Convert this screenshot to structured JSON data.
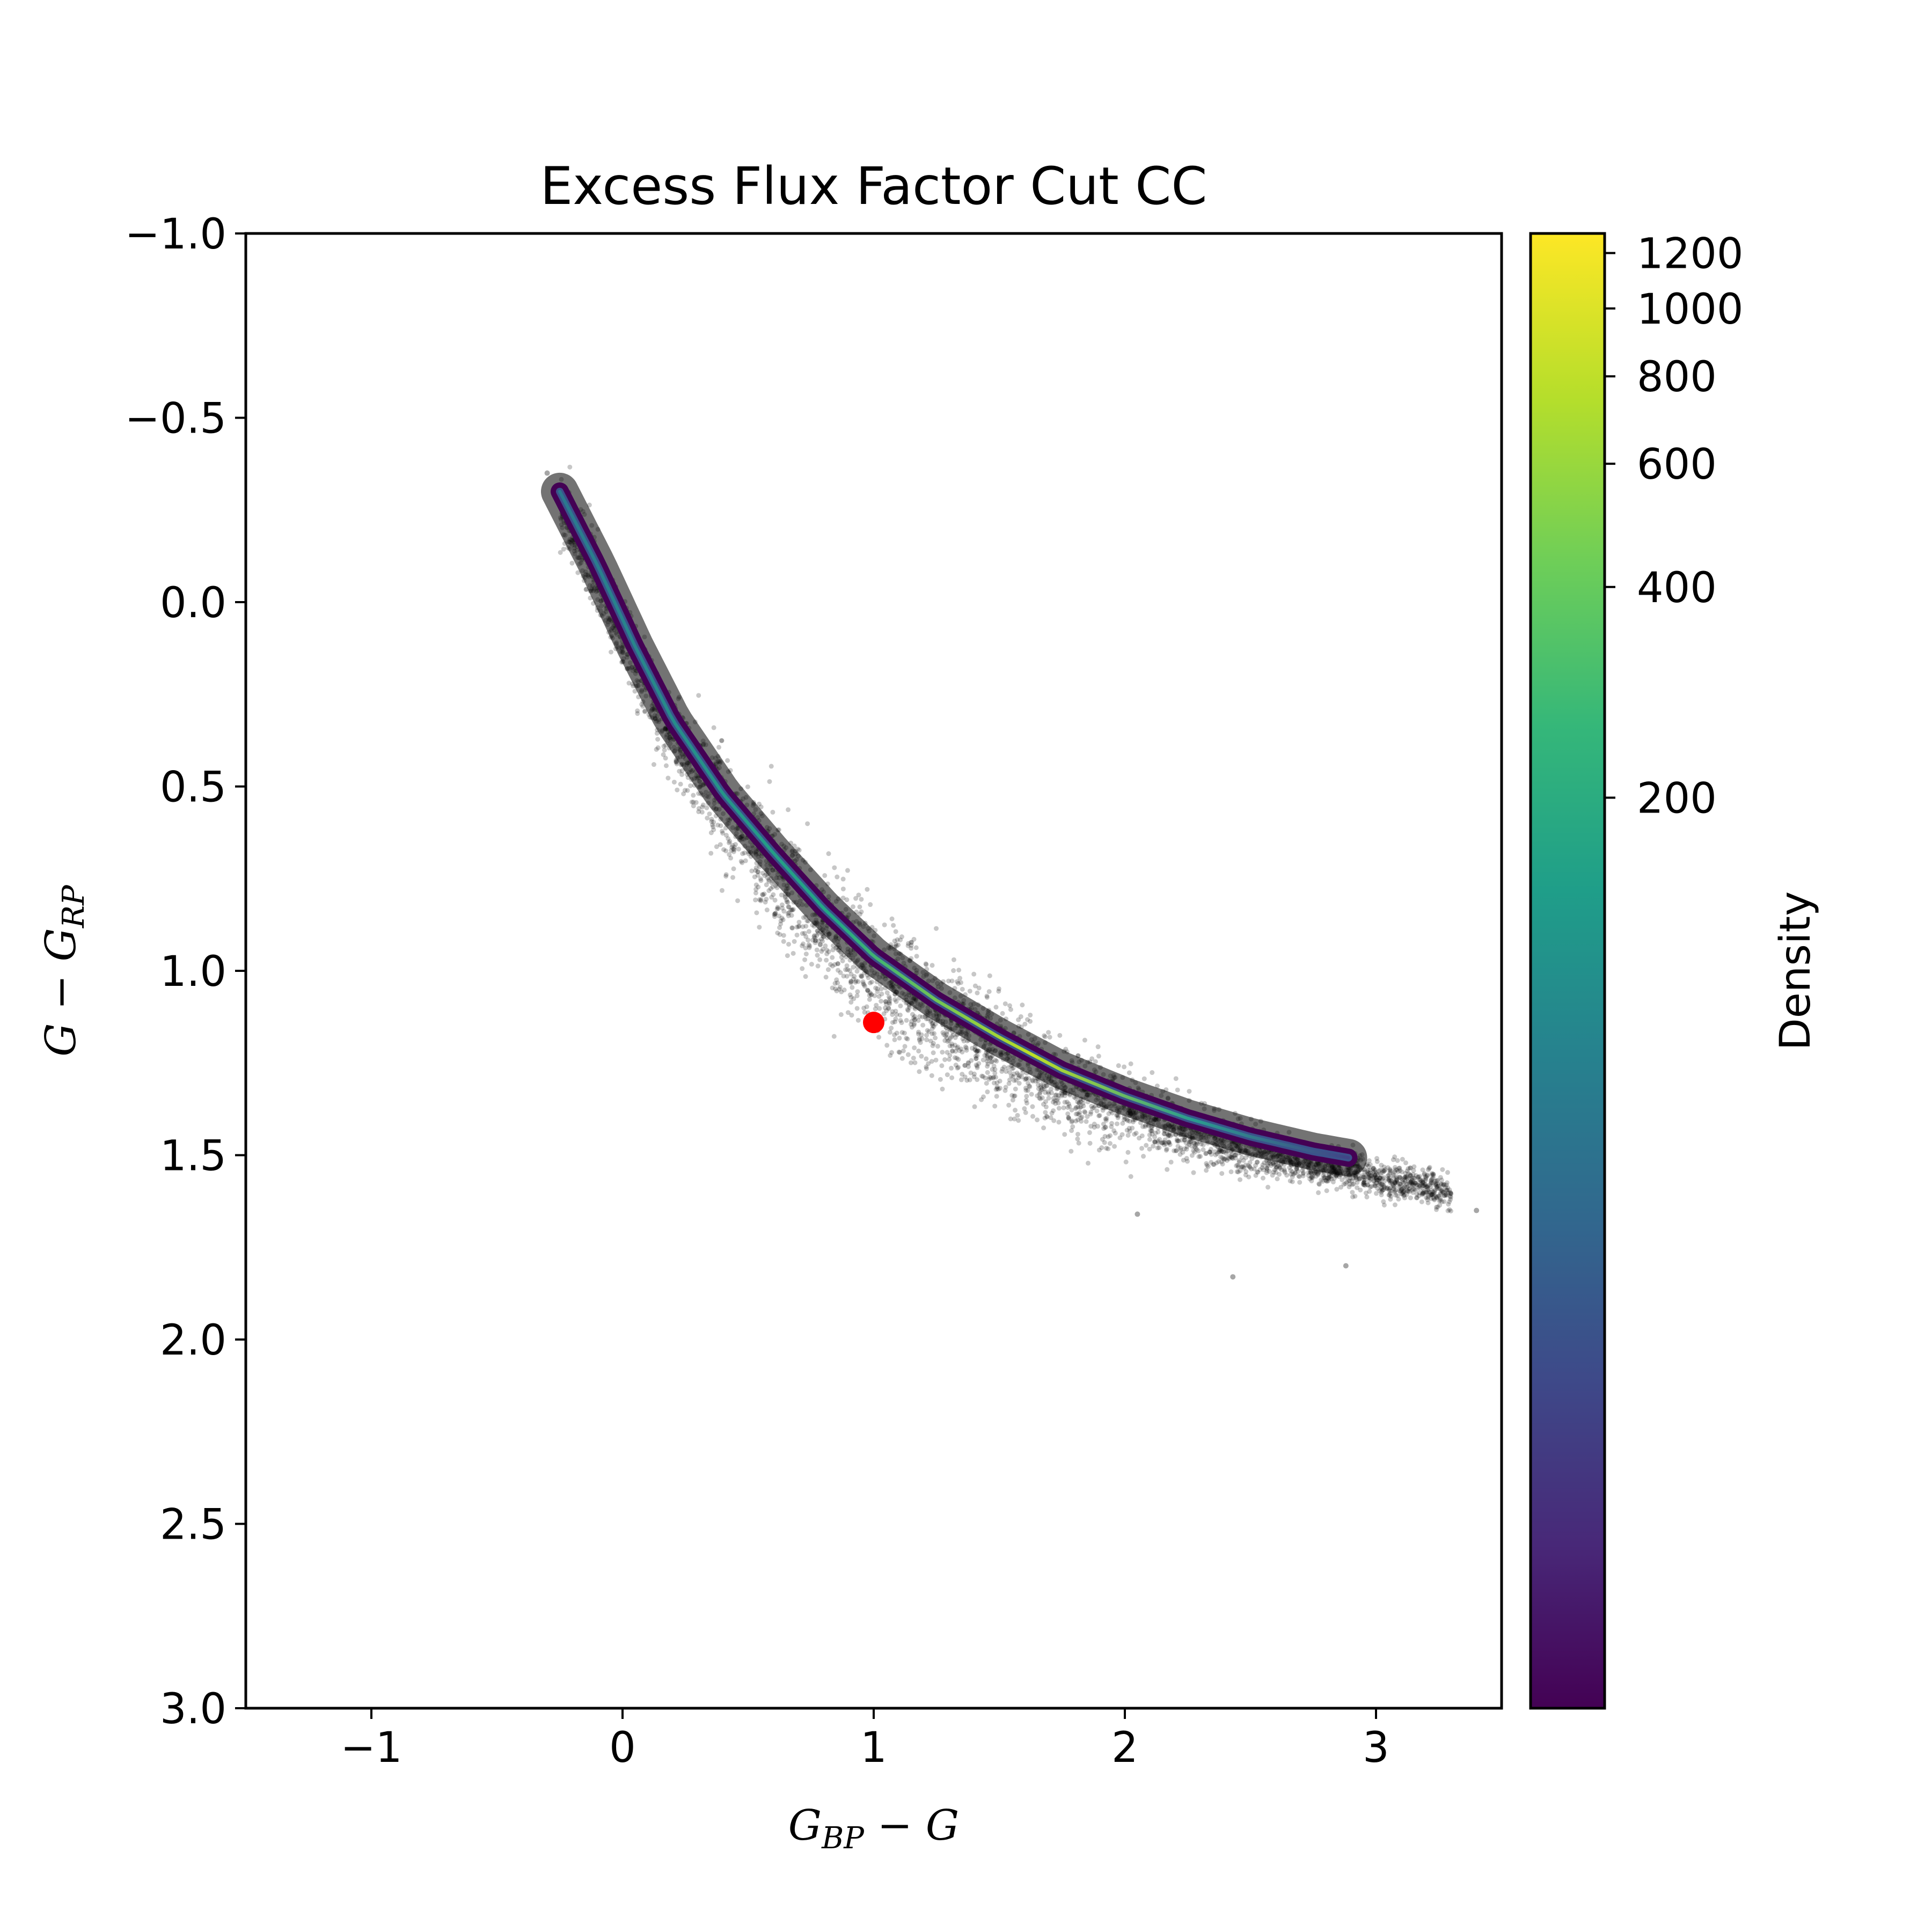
{
  "chart_data": {
    "type": "scatter",
    "title": "Excess Flux Factor Cut CC",
    "xlabel": {
      "main1": "G",
      "sub1": "BP",
      "rest": " − G"
    },
    "ylabel": {
      "main1": "G − G",
      "sub1": "RP"
    },
    "xlim": [
      -1.5,
      3.5
    ],
    "ylim": [
      3.0,
      -1.0
    ],
    "y_inverted": true,
    "grid": false,
    "x_ticks": [
      {
        "value": -1,
        "label": "−1"
      },
      {
        "value": 0,
        "label": "0"
      },
      {
        "value": 1,
        "label": "1"
      },
      {
        "value": 2,
        "label": "2"
      },
      {
        "value": 3,
        "label": "3"
      }
    ],
    "y_ticks": [
      {
        "value": -1.0,
        "label": "−1.0"
      },
      {
        "value": -0.5,
        "label": "−0.5"
      },
      {
        "value": 0.0,
        "label": "0.0"
      },
      {
        "value": 0.5,
        "label": "0.5"
      },
      {
        "value": 1.0,
        "label": "1.0"
      },
      {
        "value": 1.5,
        "label": "1.5"
      },
      {
        "value": 2.0,
        "label": "2.0"
      },
      {
        "value": 2.5,
        "label": "2.5"
      },
      {
        "value": 3.0,
        "label": "3.0"
      }
    ],
    "ridge_locus": [
      {
        "x": -0.25,
        "y": -0.3
      },
      {
        "x": -0.1,
        "y": -0.1
      },
      {
        "x": 0.05,
        "y": 0.12
      },
      {
        "x": 0.2,
        "y": 0.32
      },
      {
        "x": 0.4,
        "y": 0.52
      },
      {
        "x": 0.6,
        "y": 0.68
      },
      {
        "x": 0.8,
        "y": 0.83
      },
      {
        "x": 1.0,
        "y": 0.96
      },
      {
        "x": 1.25,
        "y": 1.08
      },
      {
        "x": 1.5,
        "y": 1.18
      },
      {
        "x": 1.75,
        "y": 1.27
      },
      {
        "x": 2.0,
        "y": 1.34
      },
      {
        "x": 2.25,
        "y": 1.4
      },
      {
        "x": 2.5,
        "y": 1.45
      },
      {
        "x": 2.75,
        "y": 1.49
      },
      {
        "x": 3.0,
        "y": 1.52
      },
      {
        "x": 3.3,
        "y": 1.56
      }
    ],
    "outliers": [
      {
        "x": 2.43,
        "y": 1.83
      },
      {
        "x": 2.88,
        "y": 1.8
      },
      {
        "x": 3.4,
        "y": 1.65
      },
      {
        "x": 2.05,
        "y": 1.66
      },
      {
        "x": -0.3,
        "y": -0.35
      }
    ],
    "highlight_point": {
      "x": 1.0,
      "y": 1.14,
      "color": "#ff0000"
    },
    "colorbar": {
      "label": "Density",
      "scale": "log",
      "range": [
        10,
        1280
      ],
      "colormap": "viridis",
      "ticks": [
        {
          "value": 1200,
          "label": "1200"
        },
        {
          "value": 1000,
          "label": "1000"
        },
        {
          "value": 800,
          "label": "800"
        },
        {
          "value": 600,
          "label": "600"
        },
        {
          "value": 400,
          "label": "400"
        },
        {
          "value": 200,
          "label": "200"
        }
      ]
    },
    "colors": {
      "scatter": "#000000",
      "viridis": [
        "#440154",
        "#482878",
        "#3e4989",
        "#31688e",
        "#26828e",
        "#1f9e89",
        "#35b779",
        "#6ece58",
        "#b5de2b",
        "#fde725"
      ]
    }
  }
}
